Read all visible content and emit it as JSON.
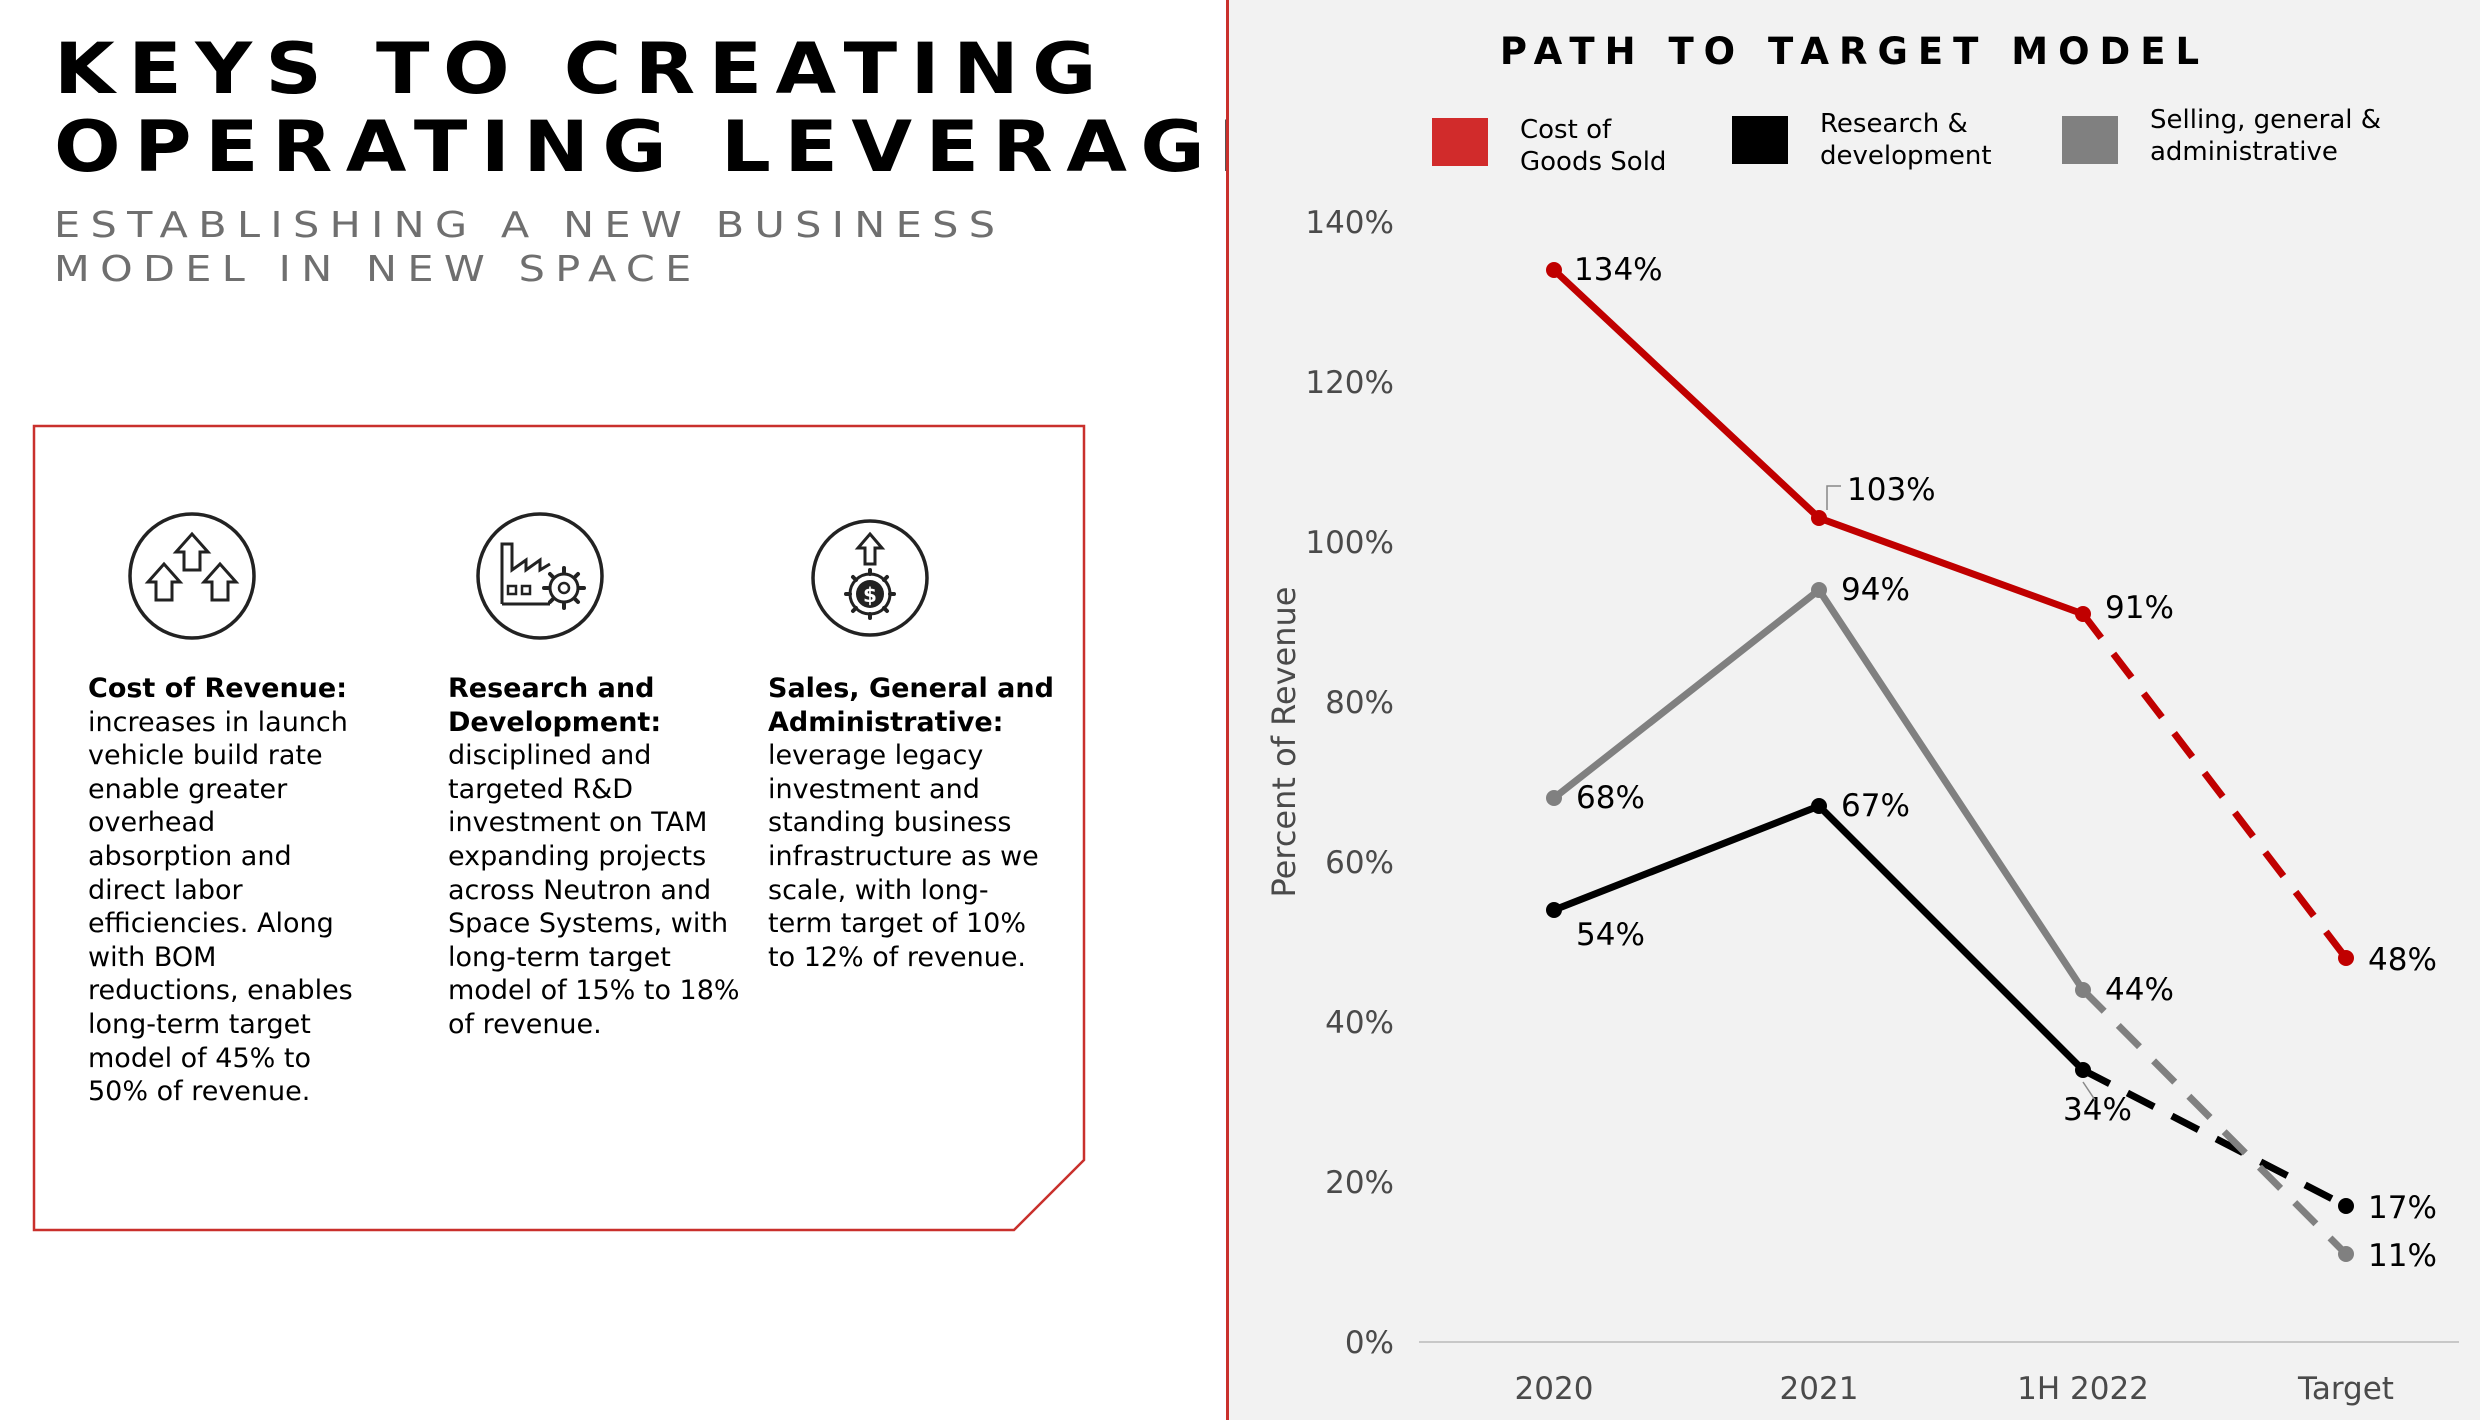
{
  "title_lines": [
    "Keys to creating",
    "operating leverage"
  ],
  "subtitle_lines": [
    "Establishing a new business",
    "model in new space"
  ],
  "columns": [
    {
      "icon": "arrows-up-icon",
      "heading": "Cost of Revenue:",
      "lines": [
        "increases in launch",
        "vehicle build rate",
        "enable greater",
        "overhead",
        "absorption and",
        "direct labor",
        "efficiencies. Along",
        "with BOM",
        "reductions, enables",
        "long-term target",
        "model of 45% to",
        "50% of revenue."
      ]
    },
    {
      "icon": "factory-gear-icon",
      "heading": "Research and Development:",
      "heading_lines": [
        "Research and",
        "Development:"
      ],
      "lines": [
        "disciplined and",
        "targeted R&D",
        "investment on TAM",
        "expanding projects",
        "across Neutron and",
        "Space Systems, with",
        "long-term target",
        "model of 15% to 18%",
        "of revenue."
      ]
    },
    {
      "icon": "dollar-gear-icon",
      "heading": "Sales, General and Administrative:",
      "heading_lines": [
        "Sales, General and",
        "Administrative:"
      ],
      "lines": [
        "leverage legacy",
        "investment and",
        "standing business",
        "infrastructure as we",
        "scale, with long-",
        "term target of 10%",
        "to 12% of revenue."
      ]
    }
  ],
  "colors": {
    "accent_red": "#c00000",
    "legend_red": "#d12b2b",
    "black": "#000000",
    "gray": "#808080",
    "divider": "#c9302c"
  },
  "chart_data": {
    "type": "line",
    "title": "Path to Target Model",
    "ylabel": "Percent of Revenue",
    "xlabel": "",
    "categories": [
      "2020",
      "2021",
      "1H 2022",
      "Target"
    ],
    "ylim": [
      0,
      140
    ],
    "yticks": [
      0,
      20,
      40,
      60,
      80,
      100,
      120,
      140
    ],
    "ytick_labels": [
      "0%",
      "20%",
      "40%",
      "60%",
      "80%",
      "100%",
      "120%",
      "140%"
    ],
    "legend": {
      "placement": "top"
    },
    "series": [
      {
        "name": "Cost of Goods Sold",
        "legend_label": "Cost of\nGoods Sold",
        "color": "#c00000",
        "values": [
          134,
          103,
          91,
          48
        ],
        "labels": [
          "134%",
          "103%",
          "91%",
          "48%"
        ],
        "projected_from_index": 2
      },
      {
        "name": "Research & development",
        "legend_label": "Research &\ndevelopment",
        "color": "#000000",
        "values": [
          54,
          67,
          34,
          17
        ],
        "labels": [
          "54%",
          "67%",
          "34%",
          "17%"
        ],
        "projected_from_index": 2
      },
      {
        "name": "Selling, general & administrative",
        "legend_label": "Selling, general &\nadministrative",
        "color": "#808080",
        "values": [
          68,
          94,
          44,
          11
        ],
        "labels": [
          "68%",
          "94%",
          "44%",
          "11%"
        ],
        "projected_from_index": 2
      }
    ]
  }
}
